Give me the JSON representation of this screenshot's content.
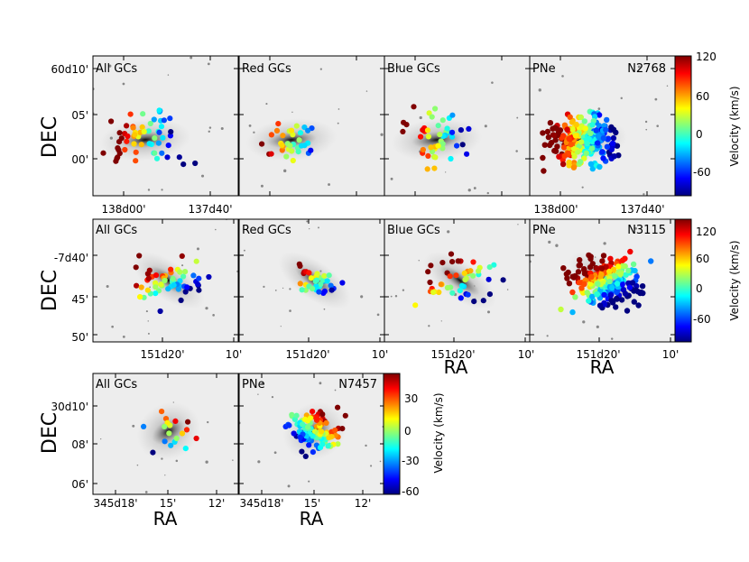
{
  "chart_data": [
    {
      "type": "scatter",
      "galaxy": "N2768",
      "ylabel": "DEC",
      "y_ticks": [
        "60d10'",
        "05'",
        "00'"
      ],
      "x_ticks": [
        "138d00'",
        "137d40'"
      ],
      "panels": [
        {
          "label": "All GCs",
          "tag": ""
        },
        {
          "label": "Red GCs",
          "tag": ""
        },
        {
          "label": "Blue GCs",
          "tag": ""
        },
        {
          "label": "PNe",
          "tag": "N2768"
        }
      ],
      "colorbar": {
        "label": "Velocity (km/s)",
        "ticks": [
          "120",
          "60",
          "0",
          "-60"
        ],
        "range": [
          -100,
          120
        ]
      },
      "colormap": [
        "#00007f",
        "#0000ff",
        "#007fff",
        "#00ffff",
        "#7fff7f",
        "#ffff00",
        "#ff7f00",
        "#ff0000",
        "#7f0000"
      ]
    },
    {
      "type": "scatter",
      "galaxy": "N3115",
      "ylabel": "DEC",
      "y_ticks": [
        "-7d40'",
        "45'",
        "50'"
      ],
      "x_ticks": [
        "151d20'",
        "10'"
      ],
      "xlabel": "RA",
      "panels": [
        {
          "label": "All GCs",
          "tag": ""
        },
        {
          "label": "Red GCs",
          "tag": ""
        },
        {
          "label": "Blue GCs",
          "tag": ""
        },
        {
          "label": "PNe",
          "tag": "N3115"
        }
      ],
      "colorbar": {
        "label": "Velocity (km/s)",
        "ticks": [
          "120",
          "60",
          "0",
          "-60"
        ],
        "range": [
          -100,
          120
        ]
      }
    },
    {
      "type": "scatter",
      "galaxy": "N7457",
      "ylabel": "DEC",
      "y_ticks": [
        "30d10'",
        "08'",
        "06'"
      ],
      "x_ticks": [
        "345d18'",
        "15'",
        "12'"
      ],
      "xlabel": "RA",
      "panels": [
        {
          "label": "All GCs",
          "tag": ""
        },
        {
          "label": "PNe",
          "tag": "N7457"
        }
      ],
      "colorbar": {
        "label": "Velocity (km/s)",
        "ticks": [
          "30",
          "0",
          "-30",
          "-60"
        ],
        "range": [
          -60,
          45
        ]
      }
    }
  ]
}
